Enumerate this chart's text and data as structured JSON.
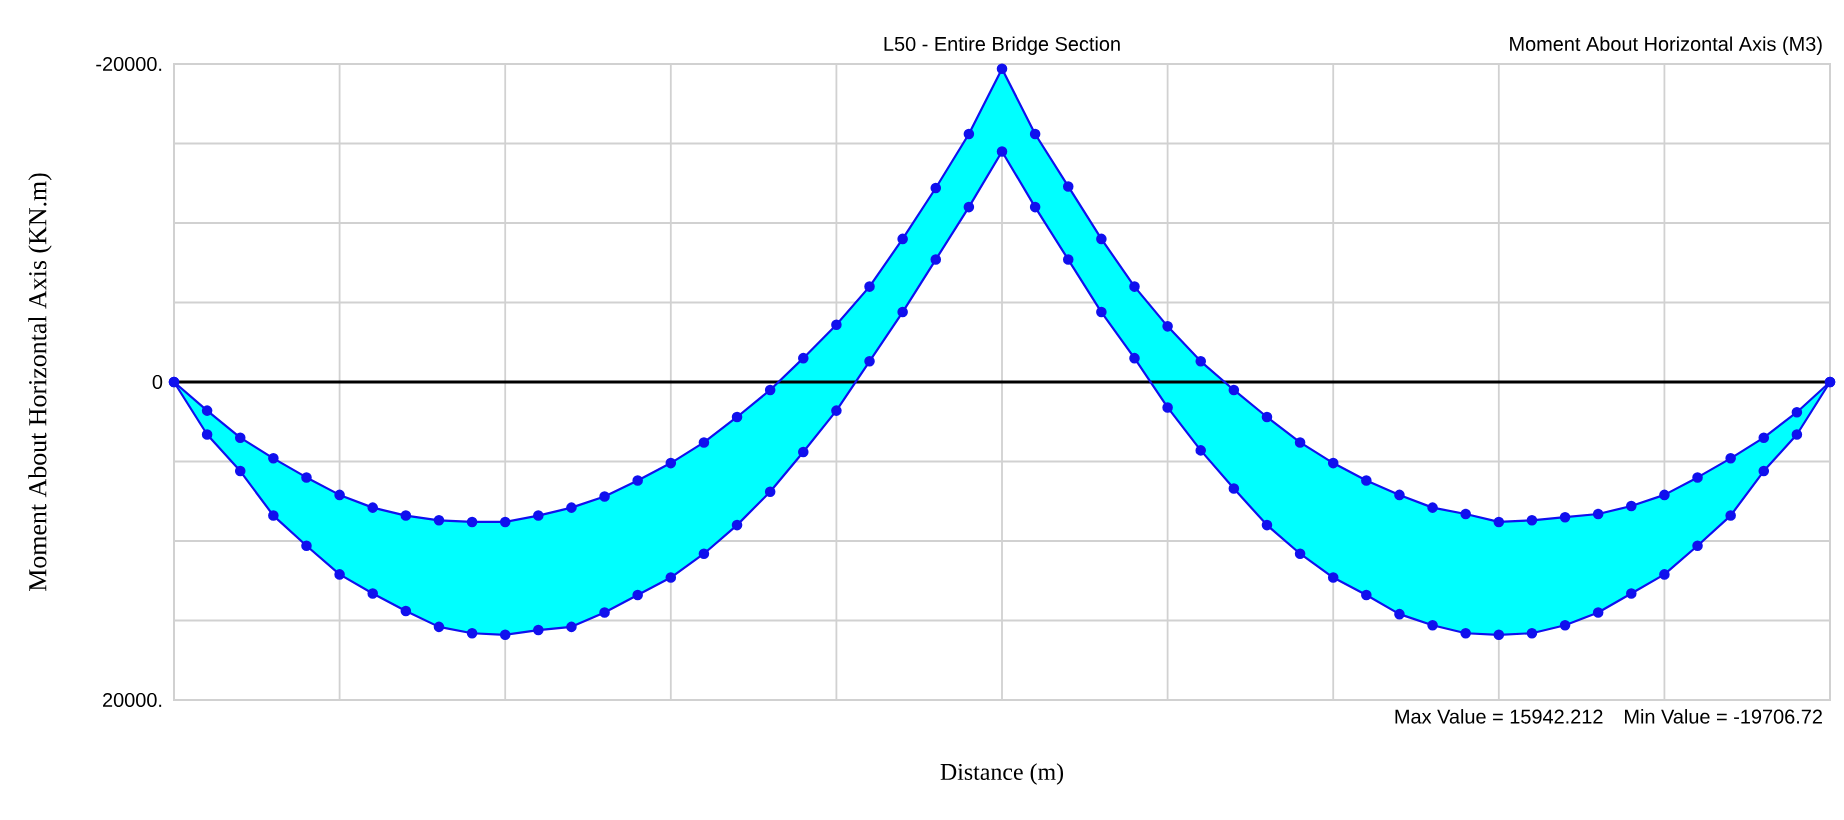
{
  "chart_data": {
    "type": "line",
    "title": "L50 - Entire Bridge Section",
    "subtitle": "Moment About Horizontal Axis  (M3)",
    "xlabel": "Distance (m)",
    "ylabel": "Moment About Horizontal Axis (KN.m)",
    "annotations": [
      "Max Value = 15942.212",
      "Min Value = -19706.72"
    ],
    "categories": [
      null,
      null,
      null,
      null,
      null,
      null,
      null,
      null,
      null,
      null,
      null,
      null,
      null,
      null,
      null,
      null,
      null,
      null,
      null,
      null,
      null,
      null,
      null,
      null,
      null,
      null,
      null,
      null,
      null,
      null,
      null,
      null,
      null,
      null,
      null,
      null,
      null,
      null,
      null,
      null,
      null,
      null,
      null,
      null,
      null,
      null,
      null,
      null,
      null,
      null,
      null
    ],
    "series": [
      {
        "color": "#1010ee",
        "values": [
          0,
          1800,
          3500,
          4800,
          6000,
          7100,
          7900,
          8400,
          8700,
          8800,
          8800,
          8400,
          7900,
          7200,
          6200,
          5100,
          3800,
          2200,
          500,
          -1500,
          -3600,
          -6000,
          -9000,
          -12200,
          -15600,
          -19700,
          -15600,
          -12300,
          -9000,
          -6000,
          -3500,
          -1300,
          500,
          2200,
          3800,
          5100,
          6200,
          7100,
          7900,
          8300,
          8800,
          8700,
          8500,
          8300,
          7800,
          7100,
          6000,
          4800,
          3500,
          1900,
          0
        ],
        "lower": [
          0,
          1800,
          3500,
          4800,
          6000,
          7100,
          7900,
          8400,
          8700,
          8800,
          8800,
          8400,
          7900,
          7200,
          6200,
          5100,
          3800,
          2200,
          500,
          -1500,
          -3600,
          -6000,
          -9000,
          -12200,
          -15600,
          -19700,
          -15600,
          -12300,
          -9000,
          -6000,
          -3500,
          -1300,
          500,
          2200,
          3800,
          5100,
          6200,
          7100,
          7900,
          8300,
          8800,
          8700,
          8500,
          8300,
          7800,
          7100,
          6000,
          4800,
          3500,
          1900,
          0
        ],
        "upper": [
          0,
          3300,
          5600,
          8400,
          10300,
          12100,
          13300,
          14400,
          15400,
          15800,
          15900,
          15600,
          15400,
          14500,
          13400,
          12300,
          10800,
          9000,
          6900,
          4400,
          1800,
          -1300,
          -4400,
          -7700,
          -11000,
          -14500,
          -11000,
          -7700,
          -4400,
          -1500,
          1600,
          4300,
          6700,
          9000,
          10800,
          12300,
          13400,
          14600,
          15300,
          15800,
          15900,
          15800,
          15300,
          14500,
          13300,
          12100,
          10300,
          8400,
          5600,
          3300,
          0
        ]
      },
      {
        "color": "#1010ee",
        "values": [
          0,
          3300,
          5600,
          8400,
          10300,
          12100,
          13300,
          14400,
          15400,
          15800,
          15900,
          15600,
          15400,
          14500,
          13400,
          12300,
          10800,
          9000,
          6900,
          4400,
          1800,
          -1300,
          -4400,
          -7700,
          -11000,
          -14500,
          -11000,
          -7700,
          -4400,
          -1500,
          1600,
          4300,
          6700,
          9000,
          10800,
          12300,
          13400,
          14600,
          15300,
          15800,
          15900,
          15800,
          15300,
          14500,
          13300,
          12100,
          10300,
          8400,
          5600,
          3300,
          0
        ]
      }
    ],
    "ylim": [
      20000,
      -20000
    ],
    "yticks": [
      {
        "value": -20000,
        "label": "-20000."
      },
      {
        "value": -15000,
        "label": null
      },
      {
        "value": -10000,
        "label": null
      },
      {
        "value": -5000,
        "label": null
      },
      {
        "value": 0,
        "label": "0"
      },
      {
        "value": 5000,
        "label": null
      },
      {
        "value": 10000,
        "label": null
      },
      {
        "value": 15000,
        "label": null
      },
      {
        "value": 20000,
        "label": "20000."
      }
    ],
    "ref_lines": [
      {
        "axis": "y",
        "value": 0,
        "color": "#000000"
      }
    ],
    "grid": true,
    "marker": "circle"
  }
}
